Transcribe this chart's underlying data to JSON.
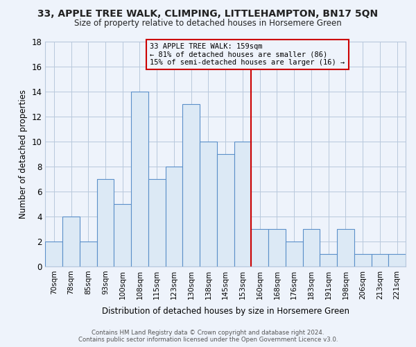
{
  "title": "33, APPLE TREE WALK, CLIMPING, LITTLEHAMPTON, BN17 5QN",
  "subtitle": "Size of property relative to detached houses in Horsemere Green",
  "xlabel": "Distribution of detached houses by size in Horsemere Green",
  "ylabel": "Number of detached properties",
  "footer_line1": "Contains HM Land Registry data © Crown copyright and database right 2024.",
  "footer_line2": "Contains public sector information licensed under the Open Government Licence v3.0.",
  "bar_labels": [
    "70sqm",
    "78sqm",
    "85sqm",
    "93sqm",
    "100sqm",
    "108sqm",
    "115sqm",
    "123sqm",
    "130sqm",
    "138sqm",
    "145sqm",
    "153sqm",
    "160sqm",
    "168sqm",
    "176sqm",
    "183sqm",
    "191sqm",
    "198sqm",
    "206sqm",
    "213sqm",
    "221sqm"
  ],
  "bar_heights": [
    2,
    4,
    2,
    7,
    5,
    14,
    7,
    8,
    13,
    10,
    9,
    10,
    3,
    3,
    2,
    3,
    1,
    3,
    1,
    1,
    1
  ],
  "bar_color": "#dce9f5",
  "bar_edge_color": "#5b8fc9",
  "vline_color": "#cc0000",
  "annotation_title": "33 APPLE TREE WALK: 159sqm",
  "annotation_line1": "← 81% of detached houses are smaller (86)",
  "annotation_line2": "15% of semi-detached houses are larger (16) →",
  "annotation_box_edge": "#cc0000",
  "ylim": [
    0,
    18
  ],
  "yticks": [
    0,
    2,
    4,
    6,
    8,
    10,
    12,
    14,
    16,
    18
  ],
  "background_color": "#eef3fb",
  "plot_bg_color": "#eef3fb",
  "grid_color": "#b8c8dc",
  "title_fontsize": 10,
  "subtitle_fontsize": 8.5
}
